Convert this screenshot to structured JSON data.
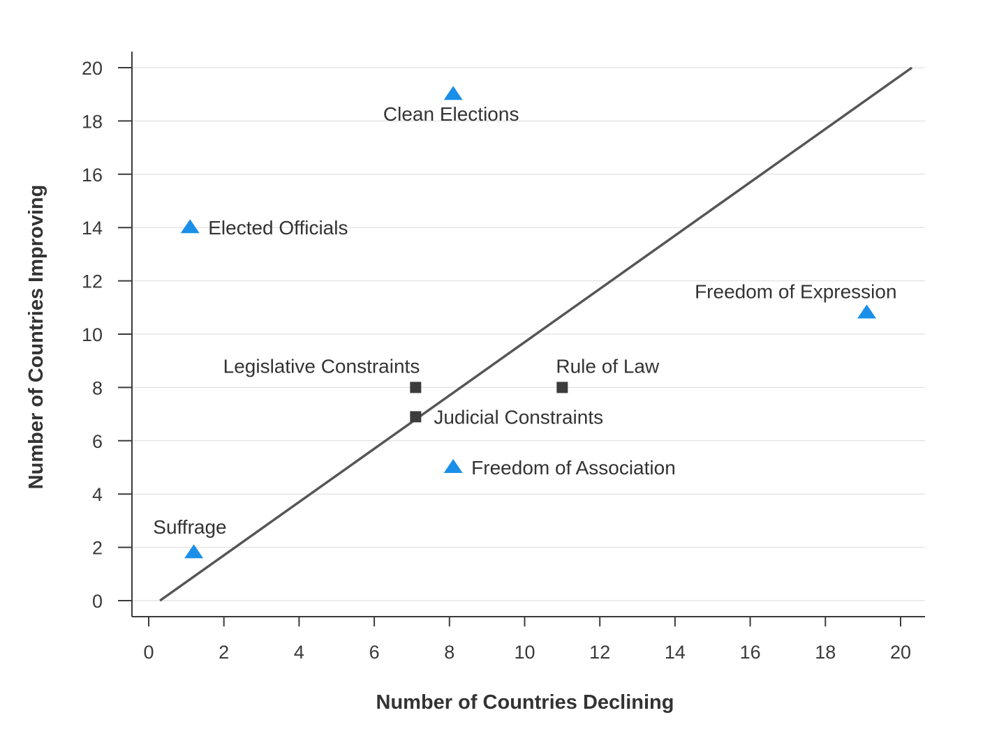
{
  "chart_data": {
    "type": "scatter",
    "xlabel": "Number of Countries Declining",
    "ylabel": "Number of Countries Improving",
    "xlim": [
      0,
      20
    ],
    "ylim": [
      0,
      20
    ],
    "x_ticks": [
      "0",
      "2",
      "4",
      "6",
      "8",
      "10",
      "12",
      "14",
      "16",
      "18",
      "20"
    ],
    "y_ticks": [
      "0",
      "2",
      "4",
      "6",
      "8",
      "10",
      "12",
      "14",
      "16",
      "18",
      "20"
    ],
    "grid": "horizontal",
    "reference_line": {
      "from": [
        0.3,
        0
      ],
      "to": [
        20.3,
        20
      ]
    },
    "points": [
      {
        "label": "Clean Elections",
        "x": 8.1,
        "y": 19,
        "marker": "triangle",
        "label_pos": "below"
      },
      {
        "label": "Elected Officials",
        "x": 1.1,
        "y": 14,
        "marker": "triangle",
        "label_pos": "right"
      },
      {
        "label": "Freedom of Expression",
        "x": 19.1,
        "y": 10.8,
        "marker": "triangle",
        "label_pos": "above-left"
      },
      {
        "label": "Legislative Constraints",
        "x": 7.1,
        "y": 8,
        "marker": "square",
        "label_pos": "above-left"
      },
      {
        "label": "Rule of Law",
        "x": 11.0,
        "y": 8,
        "marker": "square",
        "label_pos": "above"
      },
      {
        "label": "Judicial Constraints",
        "x": 7.1,
        "y": 6.9,
        "marker": "square",
        "label_pos": "right"
      },
      {
        "label": "Freedom of Association",
        "x": 8.1,
        "y": 5,
        "marker": "triangle",
        "label_pos": "right"
      },
      {
        "label": "Suffrage",
        "x": 1.2,
        "y": 1.8,
        "marker": "triangle",
        "label_pos": "above-left"
      }
    ]
  },
  "colors": {
    "triangle": "#1a8fe8",
    "square": "#3c3c3c",
    "line": "#555555",
    "axis": "#3a3a3a",
    "grid": "#d9d9d9"
  }
}
